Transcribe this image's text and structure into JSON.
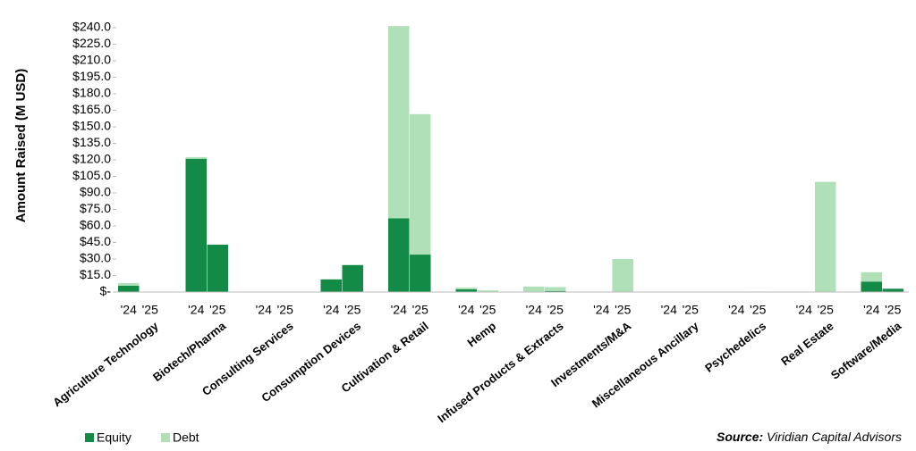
{
  "chart_data": {
    "type": "stacked-bar",
    "y_axis_label": "Amount Raised (M USD)",
    "groups": [
      "Agriculture Technology",
      "Biotech/Pharma",
      "Consulting Services",
      "Consumption Devices",
      "Cultivation & Retail",
      "Hemp",
      "Infused Products & Extracts",
      "Investments/M&A",
      "Miscellaneous Ancillary",
      "Psychedelics",
      "Real Estate",
      "Software/Media"
    ],
    "categories": [
      "'24",
      "'25",
      "'24",
      "'25",
      "'24",
      "'25",
      "'24",
      "'25",
      "'24",
      "'25",
      "'24",
      "'25",
      "'24",
      "'25",
      "'24",
      "'25",
      "'24",
      "'25",
      "'24",
      "'25",
      "'24",
      "'25",
      "'24",
      "'25"
    ],
    "series": [
      {
        "name": "Equity",
        "color": "#138a45",
        "values": [
          5.7,
          0,
          121,
          43,
          0,
          0,
          11.5,
          24.5,
          67,
          34,
          2.5,
          0,
          0.5,
          1,
          0,
          0,
          0,
          0,
          0,
          0,
          0,
          0,
          9.5,
          3
        ]
      },
      {
        "name": "Debt",
        "color": "#b0e0b8",
        "values": [
          2.5,
          0,
          1.5,
          0,
          0,
          0,
          0,
          0,
          174.5,
          127.5,
          1.5,
          1.5,
          4.5,
          3.5,
          0,
          30,
          0,
          0,
          0,
          0.5,
          0,
          100,
          8.5,
          0
        ]
      }
    ],
    "ylim": [
      0,
      240
    ],
    "yticks": [
      {
        "value": 0,
        "label": "$-"
      },
      {
        "value": 15,
        "label": "$15.0"
      },
      {
        "value": 30,
        "label": "$30.0"
      },
      {
        "value": 45,
        "label": "$45.0"
      },
      {
        "value": 60,
        "label": "$60.0"
      },
      {
        "value": 75,
        "label": "$75.0"
      },
      {
        "value": 90,
        "label": "$90.0"
      },
      {
        "value": 105,
        "label": "$105.0"
      },
      {
        "value": 120,
        "label": "$120.0"
      },
      {
        "value": 135,
        "label": "$135.0"
      },
      {
        "value": 150,
        "label": "$150.0"
      },
      {
        "value": 165,
        "label": "$165.0"
      },
      {
        "value": 180,
        "label": "$180.0"
      },
      {
        "value": 195,
        "label": "$195.0"
      },
      {
        "value": 210,
        "label": "$210.0"
      },
      {
        "value": 225,
        "label": "$225.0"
      },
      {
        "value": 240,
        "label": "$240.0"
      }
    ],
    "legend_position": "bottom-left",
    "source_label": "Source:",
    "source": "Viridian Capital Advisors"
  }
}
